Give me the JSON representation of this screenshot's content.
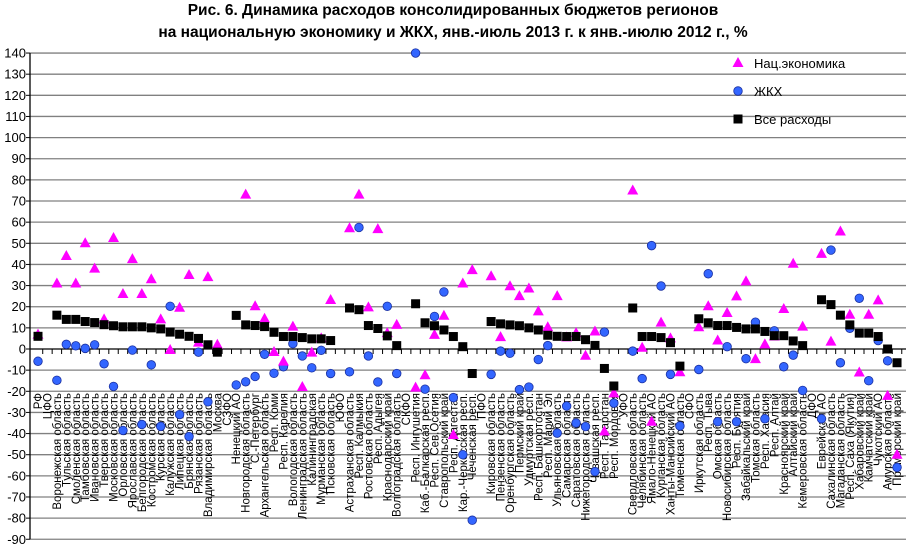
{
  "chart_data": {
    "type": "scatter",
    "title": [
      "Рис. 6. Динамика расходов консолидированных бюджетов регионов",
      "на национальную экономику и ЖКХ, янв.-июль 2013 г. к янв.-июлю 2012 г., %"
    ],
    "xlabel": "",
    "ylabel": "",
    "ylim": [
      -90,
      140
    ],
    "ystep": 10,
    "grid": true,
    "legend_position": "top-right",
    "categories": [
      "РФ",
      "ЦФО",
      "Воронежская область",
      "Тульская область",
      "Смоленская область",
      "Тамбовская область",
      "Ивановская область",
      "Тверская область",
      "Московская область",
      "Орловская область",
      "Ярославская область",
      "Белгородская область",
      "Костромская область",
      "Курская область",
      "Калужская область",
      "Липецкая область",
      "Брянская область",
      "Рязанская область",
      "Владимирская область",
      "Москва",
      "СЗФО",
      "Ненецкий АО",
      "Новгородская область",
      "С.-Петербург",
      "Архангельская область",
      "Респ. Коми",
      "Респ. Карелия",
      "Вологодская область",
      "Ленинградская область",
      "Калининградская",
      "Мурманская область",
      "Псковская область",
      "ЮФО",
      "Астраханская область",
      "Респ. Калмыкия",
      "Ростовская область",
      "Респ. Адыгея",
      "Краснодарский край",
      "Волгоградская область",
      "СКФО",
      "Респ. Ингушетия",
      "Каб.-Балкарская респ.",
      "Респ. Сев.Осетия",
      "Ставропольский край",
      "Респ. Дагестан",
      "Кар.-Черкесская респ.",
      "Чеченская респ.",
      "ПФО",
      "Кировская область",
      "Пензенская область",
      "Оренбургская область",
      "Пермский край",
      "Удмуртская респ.",
      "Респ. Башкортостан",
      "Респ. Марий Эл",
      "Ульяновская область",
      "Самарская область",
      "Саратовская область",
      "Нижегородская область",
      "Чувашская респ.",
      "Респ. Татарстан",
      "Респ. Мордовия",
      "УФО",
      "Свердловская область",
      "Челябинская область",
      "Ямало-Ненецкий АО",
      "Курганская область",
      "Ханты-Мансийский АО",
      "Тюменская область",
      "СФО",
      "Иркутская область",
      "Респ. Тыва",
      "Омская область",
      "Новосибирская область",
      "Респ. Бурятия",
      "Забайкальский край",
      "Томская область",
      "Респ. Хакасия",
      "Респ. Алтай",
      "Красноярский край",
      "Алтайский край",
      "Кемеровская область",
      "ДФО",
      "Еврейская АО",
      "Сахалинская область",
      "Магаданская область",
      "Респ. Саха (Якутия)",
      "Хабаровский край",
      "Камчатский край",
      "Чукотский АО",
      "Амурская область",
      "Приморский край"
    ],
    "series": [
      {
        "name": "Нац.экономика",
        "marker": "triangle",
        "color": "#FF00FF",
        "values": [
          6.8,
          null,
          31,
          44,
          31,
          50,
          38,
          14,
          52.5,
          26,
          42.5,
          26,
          33,
          14,
          -0.5,
          19.5,
          35,
          3,
          34,
          2,
          null,
          null,
          73,
          20.2,
          14.3,
          -1.4,
          -6,
          10.6,
          -18,
          -1.7,
          5,
          23.2,
          null,
          57.1,
          73,
          19.7,
          56.7,
          7.5,
          11.4,
          null,
          -18.3,
          -12.4,
          6.7,
          15.7,
          -40.7,
          31,
          37.3,
          null,
          34.4,
          5.6,
          29.7,
          25,
          28.6,
          17.8,
          10.3,
          25,
          5.5,
          7.5,
          -3.2,
          8.3,
          -39,
          -21,
          null,
          75,
          0.6,
          -34.4,
          12.5,
          5,
          -11,
          null,
          10.3,
          20.2,
          4,
          17,
          24.9,
          32,
          -4.8,
          2.2,
          5.9,
          18.9,
          40.3,
          10.6,
          null,
          45,
          3.5,
          55.6,
          16.2,
          -11.1,
          16.2,
          23,
          -22.2,
          -50
        ]
      },
      {
        "name": "ЖКХ",
        "marker": "circle",
        "color": "#3366FF",
        "values": [
          -5.8,
          null,
          -14.8,
          2.2,
          1.5,
          0.3,
          2,
          -7,
          -17.7,
          -38.5,
          -0.5,
          -35.7,
          -7.5,
          -36.6,
          20.2,
          -31,
          -41.4,
          -1.5,
          -25,
          null,
          null,
          -17,
          -15.5,
          -13,
          -2.5,
          -11.5,
          -8.4,
          2.5,
          -3.3,
          -8.9,
          -0.6,
          -11.6,
          null,
          -10.8,
          57.5,
          -3.3,
          -15.6,
          20.2,
          -11.6,
          null,
          140,
          -19,
          15.4,
          27,
          -23,
          -50,
          -81,
          null,
          -12,
          -1,
          -2,
          -19.2,
          -18,
          -5,
          1.6,
          -39.8,
          -27,
          -35,
          -36.7,
          -58,
          8,
          -25.6,
          null,
          -1,
          -14,
          48.9,
          29.8,
          -12,
          -36.4,
          null,
          -9.7,
          35.6,
          -34.4,
          1.1,
          -34.4,
          -4.6,
          12.7,
          -33,
          8.6,
          -8.4,
          -2.9,
          -19.6,
          null,
          -33,
          46.8,
          -6.5,
          9.8,
          24,
          -15,
          4,
          -5.6,
          -56
        ]
      },
      {
        "name": "Все расходы",
        "marker": "square",
        "color": "#000000",
        "values": [
          6,
          null,
          16,
          14,
          14,
          13,
          12.5,
          11.5,
          11,
          10.5,
          10.5,
          10.5,
          10,
          9.5,
          8,
          7,
          6,
          5,
          2,
          -1.5,
          null,
          15.9,
          11.4,
          11.1,
          10.6,
          7.9,
          5.9,
          5.9,
          5.4,
          4.8,
          4.8,
          4,
          null,
          19.4,
          18.6,
          11.1,
          9.7,
          6.2,
          1.6,
          null,
          21.4,
          12.4,
          11,
          9,
          5.9,
          1.1,
          -11.6,
          null,
          13,
          11.9,
          11.4,
          11,
          10,
          9,
          6.5,
          6,
          5.9,
          5.9,
          4.4,
          1.7,
          -9.2,
          -17.5,
          null,
          19.4,
          5.9,
          5.9,
          5.4,
          3,
          -8.1,
          null,
          14.3,
          12.4,
          11.1,
          11.1,
          10.2,
          9.5,
          9.5,
          8.3,
          6.3,
          6.3,
          3.8,
          1.6,
          null,
          23.3,
          21,
          16,
          11.4,
          7.5,
          7.5,
          5.9,
          0,
          -6.5
        ]
      }
    ]
  }
}
